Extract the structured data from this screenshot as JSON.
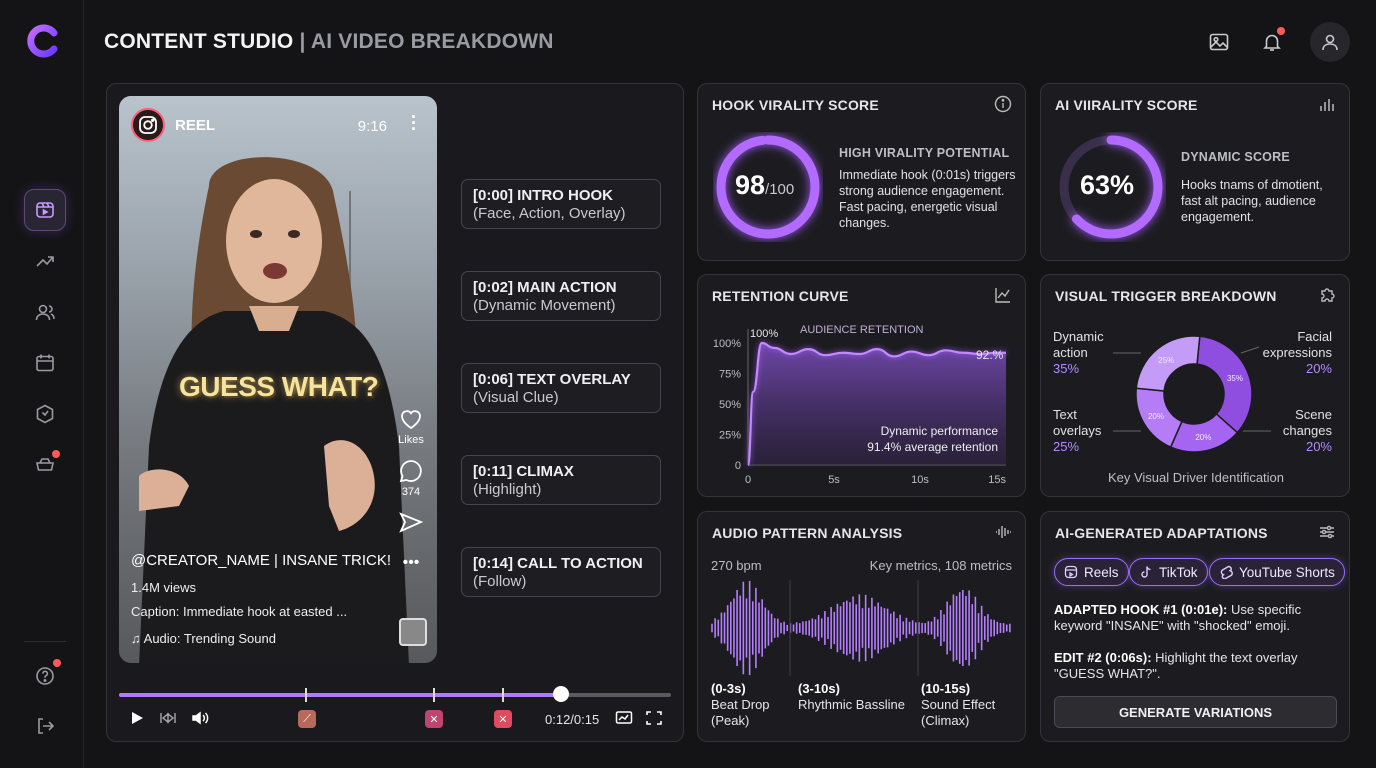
{
  "header": {
    "title_main": "CONTENT STUDIO",
    "title_sub": "| AI VIDEO BREAKDOWN"
  },
  "sidebar": {
    "items": [
      {
        "icon": "video-library-icon",
        "active": true
      },
      {
        "icon": "trending-icon"
      },
      {
        "icon": "users-icon"
      },
      {
        "icon": "calendar-icon"
      },
      {
        "icon": "box-icon"
      },
      {
        "icon": "notifications-tray-icon"
      }
    ],
    "bottom": [
      {
        "icon": "help-icon"
      },
      {
        "icon": "logout-icon"
      }
    ]
  },
  "reel": {
    "label": "REEL",
    "time": "9:16",
    "overlay_text": "GUESS WHAT?",
    "likes_label": "Likes",
    "comments_count": "374",
    "user_line": "@CREATOR_NAME | INSANE TRICK!",
    "views": "1.4M views",
    "caption": "Caption: Immediate hook at easted ...",
    "audio": "Audio: Trending Sound"
  },
  "chapters": [
    {
      "title": "[0:00] INTRO HOOK",
      "sub": "(Face, Action, Overlay)"
    },
    {
      "title": "[0:02] MAIN ACTION",
      "sub": "(Dynamic Movement)"
    },
    {
      "title": "[0:06] TEXT OVERLAY",
      "sub": "(Visual Clue)"
    },
    {
      "title": "[0:11] CLIMAX",
      "sub": "(Highlight)"
    },
    {
      "title": "[0:14] CALL TO ACTION",
      "sub": "(Follow)"
    }
  ],
  "player": {
    "current_time": "0:12/0:15",
    "progress": 0.8
  },
  "hook_score": {
    "title": "HOOK VIRALITY SCORE",
    "score": "98",
    "max": "/100",
    "value": 98,
    "heading": "HIGH VIRALITY POTENTIAL",
    "desc": "Immediate hook (0:01s) triggers strong audience engagement. Fast pacing, energetic visual changes."
  },
  "ai_score": {
    "title": "AI VIIRALITY SCORE",
    "score": "63%",
    "value": 63,
    "heading": "DYNAMIC SCORE",
    "desc": "Hooks tnams of dmotient, fast alt pacing, audience engagement."
  },
  "retention": {
    "title": "RETENTION CURVE",
    "subtitle": "AUDIENCE RETENTION",
    "peak_label": "100%",
    "end_label": "92.%",
    "note_1": "Dynamic performance",
    "note_2": "91.4% average retention"
  },
  "visual_trigger": {
    "title": "VISUAL TRIGGER BREAKDOWN",
    "footer": "Key Visual Driver Identification",
    "items": [
      {
        "label1": "Dynamic",
        "label2": "action",
        "pct": "35%"
      },
      {
        "label1": "Facial",
        "label2": "expressions",
        "pct": "20%"
      },
      {
        "label1": "Text",
        "label2": "overlays",
        "pct": "25%"
      },
      {
        "label1": "Scene",
        "label2": "changes",
        "pct": "20%"
      }
    ]
  },
  "audio": {
    "title": "AUDIO PATTERN ANALYSIS",
    "bpm": "270 bpm",
    "metrics": "Key metrics, 108 metrics",
    "segments": [
      {
        "range": "(0-3s)",
        "l1": "Beat Drop",
        "l2": "(Peak)"
      },
      {
        "range": "(3-10s)",
        "l1": "Rhythmic Bassline",
        "l2": ""
      },
      {
        "range": "(10-15s)",
        "l1": "Sound Effect",
        "l2": "(Climax)"
      }
    ]
  },
  "adaptations": {
    "title": "AI-GENERATED ADAPTATIONS",
    "chips": [
      "Reels",
      "TikTok",
      "YouTube Shorts"
    ],
    "hook_label": "ADAPTED HOOK #1 (0:01e):",
    "hook_text": " Use specific keyword \"INSANE\" with \"shocked\" emoji.",
    "edit_label": "EDIT #2 (0:06s):",
    "edit_text": " Highlight the text overlay \"GUESS WHAT?\".",
    "button": "GENERATE VARIATIONS"
  },
  "chart_data": [
    {
      "type": "line",
      "title": "RETENTION CURVE",
      "subtitle": "AUDIENCE RETENTION",
      "x": [
        0,
        0.3,
        0.8,
        1.5,
        2.5,
        3.5,
        4.5,
        5.5,
        6.5,
        7.5,
        8.5,
        9.5,
        10.5,
        11.5,
        12.5,
        13.5,
        14.5,
        15
      ],
      "y": [
        0,
        60,
        100,
        96,
        91,
        95,
        90,
        92,
        91,
        95,
        89,
        93,
        90,
        94,
        92,
        91,
        92,
        92
      ],
      "xticks": [
        "0",
        "5s",
        "10s",
        "15s"
      ],
      "yticks": [
        "0",
        "25%",
        "50%",
        "75%",
        "100%"
      ],
      "xlim": [
        0,
        15
      ],
      "ylim": [
        0,
        100
      ],
      "series_color": "#b57dff"
    },
    {
      "type": "pie",
      "title": "VISUAL TRIGGER BREAKDOWN",
      "categories": [
        "Dynamic action",
        "Facial expressions",
        "Scene changes",
        "Text overlays"
      ],
      "values": [
        35,
        20,
        20,
        25
      ]
    }
  ]
}
